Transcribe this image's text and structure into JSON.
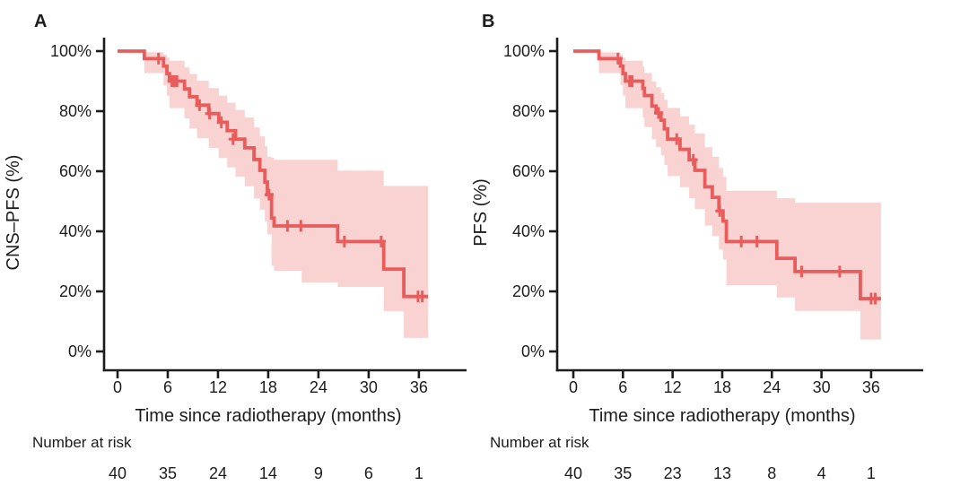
{
  "figure_title": "",
  "colors": {
    "curve": "#e85c5c",
    "band": "#f9d2d2",
    "axis": "#1c1c1c",
    "background": "#ffffff"
  },
  "chart_data": [
    {
      "type": "line",
      "subtype": "kaplan-meier",
      "panel_label": "A",
      "xlabel": "Time since radiotherapy (months)",
      "ylabel": "CNS–PFS (%)",
      "xlim": [
        0,
        42
      ],
      "ylim": [
        0,
        100
      ],
      "grid": false,
      "legend": "none",
      "x_ticks": [
        0,
        6,
        12,
        18,
        24,
        30,
        36
      ],
      "y_tick_values": [
        100,
        80,
        60,
        40,
        20,
        0
      ],
      "y_tick_labels": [
        "100%",
        "80%",
        "60%",
        "40%",
        "20%",
        "0%"
      ],
      "series": [
        {
          "name": "CNS-PFS",
          "end_time": 37.1,
          "steps": [
            [
              0,
              100
            ],
            [
              3.2,
              97.5
            ],
            [
              5.5,
              95.0
            ],
            [
              5.9,
              92.5
            ],
            [
              6.2,
              90.0
            ],
            [
              8.0,
              87.4
            ],
            [
              8.6,
              84.8
            ],
            [
              9.5,
              82.0
            ],
            [
              10.9,
              79.2
            ],
            [
              12.1,
              76.3
            ],
            [
              13.1,
              73.5
            ],
            [
              14.1,
              70.7
            ],
            [
              15.2,
              67.8
            ],
            [
              16.3,
              63.9
            ],
            [
              17.0,
              60.3
            ],
            [
              17.6,
              56.4
            ],
            [
              17.9,
              52.2
            ],
            [
              18.4,
              44.4
            ],
            [
              18.7,
              41.8
            ],
            [
              26.3,
              36.6
            ],
            [
              31.8,
              27.4
            ],
            [
              34.2,
              18.3
            ]
          ]
        }
      ],
      "censor_marks": [
        [
          4.9,
          97.5
        ],
        [
          6.5,
          90.0
        ],
        [
          6.8,
          90.0
        ],
        [
          7.1,
          90.0
        ],
        [
          9.8,
          82.0
        ],
        [
          11.0,
          79.2
        ],
        [
          12.4,
          76.3
        ],
        [
          13.8,
          70.7
        ],
        [
          18.1,
          52.2
        ],
        [
          20.3,
          41.8
        ],
        [
          21.9,
          41.8
        ],
        [
          27.1,
          36.6
        ],
        [
          31.5,
          36.6
        ],
        [
          35.9,
          18.3
        ],
        [
          36.4,
          18.3
        ]
      ],
      "confidence_band": [
        [
          3.2,
          92.7,
          99.6
        ],
        [
          5.5,
          88.6,
          98.8
        ],
        [
          5.9,
          85.2,
          97.8
        ],
        [
          6.2,
          81.0,
          96.8
        ],
        [
          8.0,
          77.6,
          94.6
        ],
        [
          8.6,
          74.2,
          92.4
        ],
        [
          9.5,
          71.0,
          90.1
        ],
        [
          10.9,
          67.7,
          87.7
        ],
        [
          12.1,
          64.4,
          85.2
        ],
        [
          13.1,
          61.3,
          82.8
        ],
        [
          14.1,
          58.2,
          80.4
        ],
        [
          15.2,
          55.0,
          77.9
        ],
        [
          16.3,
          50.9,
          74.6
        ],
        [
          17.0,
          47.2,
          71.6
        ],
        [
          17.6,
          43.2,
          68.3
        ],
        [
          17.9,
          39.0,
          64.9
        ],
        [
          18.4,
          28.5,
          64.5
        ],
        [
          18.7,
          26.8,
          63.8
        ],
        [
          22.0,
          23.0,
          63.8
        ],
        [
          26.3,
          21.5,
          60.2
        ],
        [
          31.8,
          13.4,
          55.1
        ],
        [
          34.2,
          4.5,
          55.1
        ]
      ],
      "number_at_risk": {
        "label": "Number at risk",
        "times": [
          0,
          6,
          12,
          18,
          24,
          30,
          36
        ],
        "counts": [
          "40",
          "35",
          "24",
          "14",
          "9",
          "6",
          "1"
        ]
      }
    },
    {
      "type": "line",
      "subtype": "kaplan-meier",
      "panel_label": "B",
      "xlabel": "Time since radiotherapy (months)",
      "ylabel": "PFS (%)",
      "xlim": [
        0,
        42
      ],
      "ylim": [
        0,
        100
      ],
      "grid": false,
      "legend": "none",
      "x_ticks": [
        0,
        6,
        12,
        18,
        24,
        30,
        36
      ],
      "y_tick_values": [
        100,
        80,
        60,
        40,
        20,
        0
      ],
      "y_tick_labels": [
        "100%",
        "80%",
        "60%",
        "40%",
        "20%",
        "0%"
      ],
      "series": [
        {
          "name": "PFS",
          "end_time": 37.2,
          "steps": [
            [
              0,
              100
            ],
            [
              3.1,
              97.5
            ],
            [
              5.7,
              95.0
            ],
            [
              6.0,
              92.5
            ],
            [
              6.3,
              90.0
            ],
            [
              8.4,
              87.6
            ],
            [
              8.6,
              85.2
            ],
            [
              9.5,
              81.7
            ],
            [
              10.0,
              79.4
            ],
            [
              10.6,
              77.0
            ],
            [
              11.0,
              74.1
            ],
            [
              11.4,
              70.7
            ],
            [
              12.9,
              67.3
            ],
            [
              14.0,
              63.8
            ],
            [
              14.7,
              60.3
            ],
            [
              15.9,
              54.8
            ],
            [
              16.8,
              51.3
            ],
            [
              17.6,
              46.8
            ],
            [
              18.1,
              43.4
            ],
            [
              18.5,
              36.6
            ],
            [
              24.6,
              31.0
            ],
            [
              26.8,
              26.6
            ],
            [
              34.7,
              17.6
            ]
          ]
        }
      ],
      "censor_marks": [
        [
          5.4,
          97.5
        ],
        [
          6.8,
          90.0
        ],
        [
          7.1,
          90.0
        ],
        [
          10.3,
          79.4
        ],
        [
          12.5,
          70.7
        ],
        [
          14.5,
          63.8
        ],
        [
          17.7,
          46.8
        ],
        [
          20.3,
          36.6
        ],
        [
          22.2,
          36.6
        ],
        [
          27.6,
          26.6
        ],
        [
          32.2,
          26.6
        ],
        [
          36.0,
          17.6
        ],
        [
          36.5,
          17.6
        ]
      ],
      "confidence_band": [
        [
          3.1,
          92.7,
          99.6
        ],
        [
          5.7,
          88.6,
          98.8
        ],
        [
          6.0,
          85.2,
          97.8
        ],
        [
          6.3,
          81.0,
          96.8
        ],
        [
          8.4,
          77.9,
          94.8
        ],
        [
          8.6,
          74.7,
          92.7
        ],
        [
          9.5,
          70.6,
          89.9
        ],
        [
          10.0,
          68.0,
          88.0
        ],
        [
          10.6,
          65.3,
          86.0
        ],
        [
          11.0,
          62.1,
          83.8
        ],
        [
          11.4,
          58.4,
          81.1
        ],
        [
          12.9,
          54.7,
          78.3
        ],
        [
          14.0,
          51.0,
          75.5
        ],
        [
          14.7,
          47.4,
          72.6
        ],
        [
          15.9,
          41.9,
          68.0
        ],
        [
          16.8,
          38.4,
          64.8
        ],
        [
          17.6,
          33.9,
          61.1
        ],
        [
          18.1,
          30.6,
          58.2
        ],
        [
          18.5,
          22.0,
          53.5
        ],
        [
          24.6,
          18.0,
          51.0
        ],
        [
          26.8,
          13.5,
          49.5
        ],
        [
          34.7,
          4.0,
          49.5
        ]
      ],
      "number_at_risk": {
        "label": "Number at risk",
        "times": [
          0,
          6,
          12,
          18,
          24,
          30,
          36
        ],
        "counts": [
          "40",
          "35",
          "23",
          "13",
          "8",
          "4",
          "1"
        ]
      }
    }
  ]
}
